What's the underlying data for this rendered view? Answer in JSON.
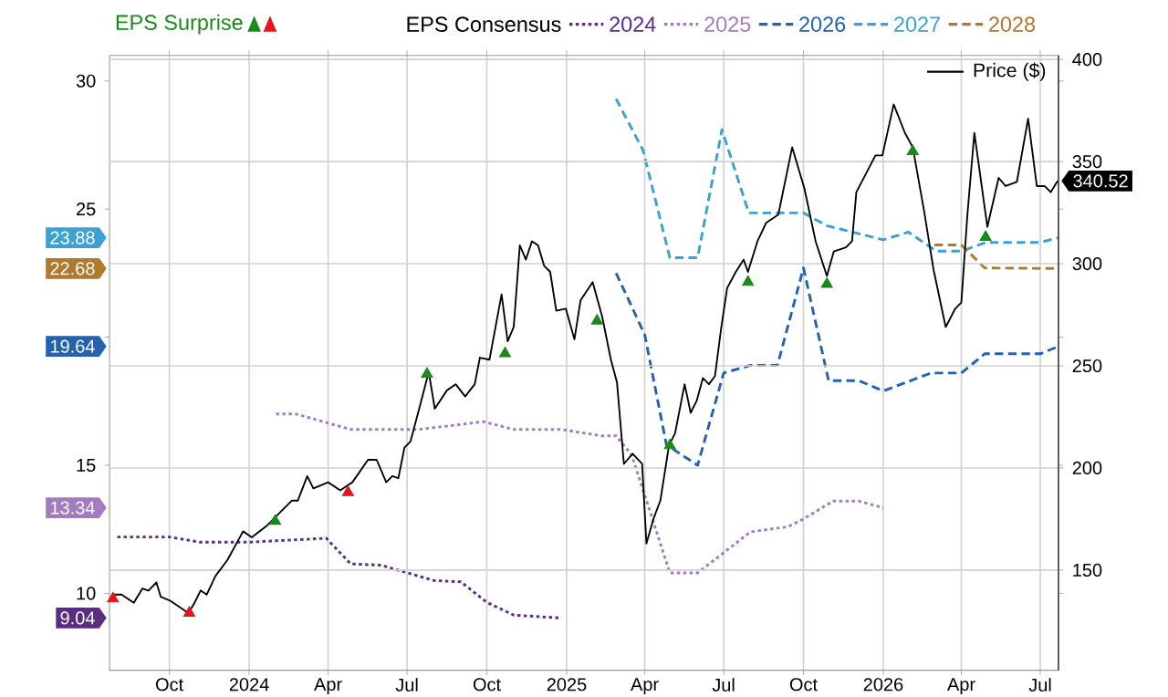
{
  "chart_data": {
    "type": "line",
    "legend_title": "EPS Consensus",
    "legend": "top",
    "grid": true,
    "xlim": [
      "2023-07-24",
      "2026-07-22"
    ],
    "xticks": [
      {
        "value": "2023-10-01",
        "label": "Oct"
      },
      {
        "value": "2024-01-01",
        "label": "2024"
      },
      {
        "value": "2024-04-01",
        "label": "Apr"
      },
      {
        "value": "2024-07-01",
        "label": "Jul"
      },
      {
        "value": "2024-10-01",
        "label": "Oct"
      },
      {
        "value": "2025-01-01",
        "label": "2025"
      },
      {
        "value": "2025-04-01",
        "label": "Apr"
      },
      {
        "value": "2025-07-01",
        "label": "Jul"
      },
      {
        "value": "2025-10-01",
        "label": "Oct"
      },
      {
        "value": "2026-01-01",
        "label": "2026"
      },
      {
        "value": "2026-04-01",
        "label": "Apr"
      },
      {
        "value": "2026-07-01",
        "label": "Jul"
      }
    ],
    "ylim": [
      7,
      31
    ],
    "yticks": [
      9.04,
      10,
      13.34,
      15,
      19.64,
      {
        "value": 20,
        "label": null
      },
      22.68,
      23.88,
      25,
      30
    ],
    "y2lim": [
      101,
      402
    ],
    "y2ticks": [
      150,
      200,
      250,
      300,
      340.52,
      350,
      400
    ],
    "series": [
      {
        "name": "2024",
        "color": "#5a2d82",
        "line_style": "dotted",
        "x": [
          "2023-08-02",
          "2023-10-01",
          "2023-11-05",
          "2024-01-01",
          "2024-03-30",
          "2024-04-27",
          "2024-06-01",
          "2024-08-01",
          "2024-09-01",
          "2024-10-01",
          "2024-11-01",
          "2024-12-25"
        ],
        "values": [
          12.2,
          12.2,
          12.0,
          12.0,
          12.15,
          11.15,
          11.1,
          10.5,
          10.45,
          9.65,
          9.15,
          9.04
        ]
      },
      {
        "name": "2025",
        "color": "#a27cbf",
        "line_style": "dotted",
        "x": [
          "2024-02-01",
          "2024-02-24",
          "2024-04-27",
          "2024-07-15",
          "2024-09-27",
          "2024-11-01",
          "2024-12-25",
          "2025-02-10",
          "2025-02-27",
          "2025-03-17",
          "2025-04-30",
          "2025-06-01",
          "2025-08-01",
          "2025-09-13",
          "2025-10-01",
          "2025-11-04",
          "2025-12-04",
          "2026-01-01"
        ],
        "values": [
          17.0,
          17.0,
          16.4,
          16.4,
          16.7,
          16.4,
          16.4,
          16.15,
          16.15,
          15.4,
          10.8,
          10.8,
          12.4,
          12.6,
          12.9,
          13.6,
          13.6,
          13.34
        ]
      },
      {
        "name": "2026",
        "color": "#2462ae",
        "line_style": "dashed",
        "x": [
          "2025-02-27",
          "2025-04-01",
          "2025-04-26",
          "2025-06-01",
          "2025-07-01",
          "2025-08-01",
          "2025-09-01",
          "2025-10-01",
          "2025-10-30",
          "2025-12-04",
          "2026-01-01",
          "2026-02-25",
          "2026-04-01",
          "2026-04-28",
          "2026-07-01",
          "2026-07-22"
        ],
        "values": [
          22.5,
          20.1,
          15.8,
          15.0,
          18.6,
          18.9,
          18.9,
          22.7,
          18.3,
          18.3,
          17.9,
          18.6,
          18.6,
          19.35,
          19.35,
          19.64
        ]
      },
      {
        "name": "2027",
        "color": "#3da1d1",
        "line_style": "dashed",
        "x": [
          "2025-02-27",
          "2025-03-30",
          "2025-04-30",
          "2025-06-01",
          "2025-06-29",
          "2025-07-30",
          "2025-10-01",
          "2025-10-28",
          "2026-01-01",
          "2026-01-30",
          "2026-03-03",
          "2026-04-01",
          "2026-04-30",
          "2026-07-01",
          "2026-07-22"
        ],
        "values": [
          29.3,
          27.3,
          23.1,
          23.1,
          28.1,
          24.85,
          24.85,
          24.35,
          23.8,
          24.1,
          23.36,
          23.36,
          23.7,
          23.7,
          23.88
        ]
      },
      {
        "name": "2028",
        "color": "#b07a2c",
        "line_style": "dashed",
        "x": [
          "2026-03-01",
          "2026-04-01",
          "2026-04-28",
          "2026-07-22"
        ],
        "values": [
          23.6,
          23.6,
          22.7,
          22.68
        ]
      },
      {
        "name": "Price ($)",
        "axis": "y2",
        "color": "#000000",
        "line_style": "solid",
        "x": [
          "2023-07-27",
          "2023-08-07",
          "2023-08-21",
          "2023-08-31",
          "2023-09-07",
          "2023-09-16",
          "2023-09-21",
          "2023-10-02",
          "2023-10-23",
          "2023-10-30",
          "2023-11-06",
          "2023-11-13",
          "2023-11-23",
          "2023-12-07",
          "2023-12-25",
          "2024-01-04",
          "2024-01-22",
          "2024-02-05",
          "2024-02-19",
          "2024-02-26",
          "2024-03-08",
          "2024-03-15",
          "2024-04-01",
          "2024-04-15",
          "2024-04-29",
          "2024-05-17",
          "2024-05-27",
          "2024-06-07",
          "2024-06-14",
          "2024-06-21",
          "2024-06-28",
          "2024-07-05",
          "2024-07-15",
          "2024-07-26",
          "2024-08-02",
          "2024-08-16",
          "2024-08-26",
          "2024-09-06",
          "2024-09-17",
          "2024-09-23",
          "2024-10-04",
          "2024-10-18",
          "2024-10-25",
          "2024-11-01",
          "2024-11-08",
          "2024-11-15",
          "2024-11-22",
          "2024-11-29",
          "2024-12-06",
          "2024-12-13",
          "2024-12-20",
          "2024-12-31",
          "2025-01-10",
          "2025-01-17",
          "2025-01-31",
          "2025-02-11",
          "2025-02-21",
          "2025-02-28",
          "2025-03-08",
          "2025-03-18",
          "2025-03-29",
          "2025-04-03",
          "2025-04-11",
          "2025-04-19",
          "2025-04-29",
          "2025-05-06",
          "2025-05-17",
          "2025-05-24",
          "2025-05-31",
          "2025-06-07",
          "2025-06-14",
          "2025-06-21",
          "2025-06-28",
          "2025-07-05",
          "2025-07-15",
          "2025-07-24",
          "2025-07-29",
          "2025-08-09",
          "2025-08-19",
          "2025-09-02",
          "2025-09-18",
          "2025-10-02",
          "2025-10-15",
          "2025-10-28",
          "2025-11-05",
          "2025-11-19",
          "2025-11-26",
          "2025-12-01",
          "2025-12-23",
          "2025-12-31",
          "2026-01-13",
          "2026-01-26",
          "2026-02-04",
          "2026-02-17",
          "2026-02-28",
          "2026-03-14",
          "2026-03-25",
          "2026-04-01",
          "2026-04-08",
          "2026-04-16",
          "2026-05-01",
          "2026-05-14",
          "2026-05-22",
          "2026-06-04",
          "2026-06-17",
          "2026-06-27",
          "2026-07-06",
          "2026-07-13",
          "2026-07-21"
        ],
        "values": [
          138,
          138,
          134,
          141,
          140,
          144,
          137,
          135,
          129,
          134,
          140,
          138,
          147,
          155,
          169,
          166,
          172,
          178,
          184,
          184,
          196,
          190,
          193,
          189,
          193,
          204,
          204,
          193,
          196,
          195,
          210,
          213,
          229,
          247,
          229,
          238,
          241,
          235,
          241,
          254,
          253,
          285,
          262,
          269,
          309,
          302,
          311,
          309,
          299,
          296,
          277,
          278,
          263,
          282,
          291,
          274,
          253,
          242,
          202,
          207,
          202,
          163,
          175,
          184,
          211,
          217,
          241,
          227,
          233,
          244,
          241,
          245,
          268,
          288,
          296,
          302,
          296,
          311,
          320,
          324,
          357,
          337,
          311,
          294,
          306,
          308,
          311,
          335,
          353,
          353,
          378,
          364,
          357,
          326,
          297,
          269,
          278,
          281,
          324,
          364,
          318,
          342,
          338,
          340,
          371,
          338,
          338,
          335,
          340.52
        ]
      },
      {
        "name": "EPS Surprise",
        "type": "scatter",
        "axis": "y2",
        "marker": "triangle",
        "color": "#1a8a1a",
        "x": [
          "2024-01-31",
          "2024-07-24",
          "2024-10-22",
          "2025-02-05",
          "2025-04-30",
          "2025-07-29",
          "2025-10-28",
          "2026-02-04",
          "2026-04-29"
        ],
        "values": [
          174,
          246,
          256,
          272,
          211,
          291,
          290,
          355,
          313
        ]
      },
      {
        "type": "scatter",
        "axis": "y2",
        "marker": "triangle",
        "color": "#e8141b",
        "x": [
          "2023-07-28",
          "2023-10-24",
          "2024-04-24"
        ],
        "values": [
          136,
          129,
          188
        ]
      }
    ]
  }
}
